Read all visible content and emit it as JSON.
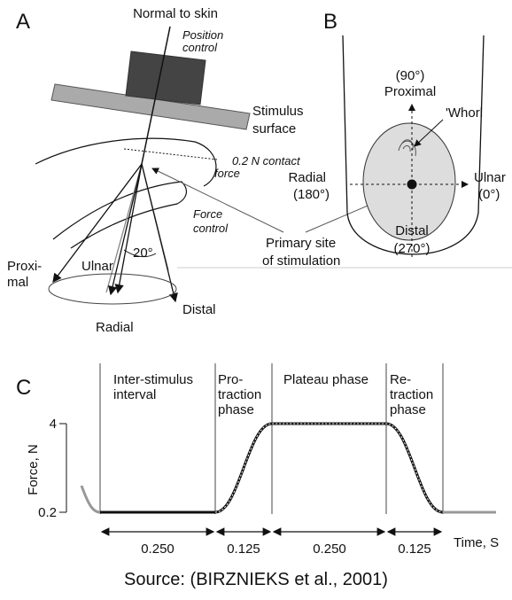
{
  "panel_a": {
    "label": "A",
    "normal": "Normal to skin",
    "position_control": [
      "Position",
      "control"
    ],
    "surface": [
      "Stimulus",
      "surface"
    ],
    "contact_force": [
      "0.2 N contact",
      "force"
    ],
    "force_control": [
      "Force",
      "control"
    ],
    "angle": "20°",
    "proximal": [
      "Proxi-",
      "mal"
    ],
    "ulnar": "Ulnar",
    "radial": "Radial",
    "distal": "Distal",
    "primary_site": [
      "Primary site",
      "of stimulation"
    ]
  },
  "panel_b": {
    "label": "B",
    "proximal": [
      "(90°)",
      "Proximal"
    ],
    "whorl": "'Whorl",
    "radial": [
      "Radial",
      "(180°)"
    ],
    "ulnar": [
      "Ulnar",
      "(0°)"
    ],
    "distal": [
      "Distal",
      "(270°)"
    ]
  },
  "panel_c": {
    "label": "C",
    "phases": [
      [
        "Inter-stimulus",
        "interval"
      ],
      [
        "Pro-",
        "traction",
        "phase"
      ],
      [
        "Plateau phase"
      ],
      [
        "Re-",
        "traction",
        "phase"
      ]
    ],
    "y_label": "Force, N",
    "y_ticks": [
      "4",
      "0.2"
    ],
    "durations": [
      "0.250",
      "0.125",
      "0.250",
      "0.125"
    ],
    "x_label": "Time, S"
  },
  "source": "Source: (BIRZNIEKS et al., 2001)"
}
